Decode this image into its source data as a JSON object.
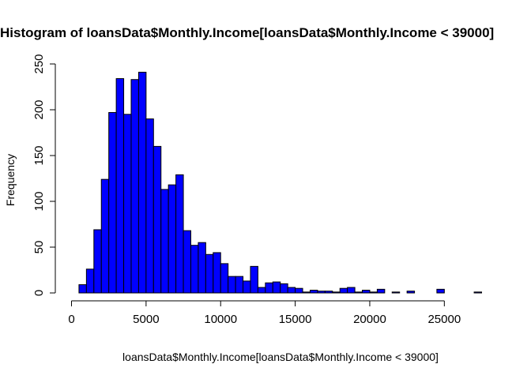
{
  "chart_data": {
    "type": "bar",
    "title": "Histogram of loansData$Monthly.Income[loansData$Monthly.Income < 39000]",
    "xlabel": "loansData$Monthly.Income[loansData$Monthly.Income < 39000]",
    "ylabel": "Frequency",
    "bar_color": "#0000ff",
    "bin_width": 500,
    "bin_start": 500,
    "values": [
      9,
      26,
      69,
      124,
      197,
      234,
      195,
      233,
      241,
      190,
      160,
      113,
      118,
      129,
      68,
      52,
      55,
      42,
      44,
      32,
      18,
      18,
      13,
      29,
      6,
      11,
      12,
      10,
      6,
      5,
      1,
      3,
      2,
      2,
      1,
      5,
      6,
      1,
      3,
      1,
      4,
      0,
      1,
      0,
      2,
      0,
      0,
      0,
      4,
      0,
      0,
      0,
      0,
      1
    ],
    "xlim": [
      0,
      27500
    ],
    "ylim": [
      0,
      250
    ],
    "xticks": [
      0,
      5000,
      10000,
      15000,
      20000,
      25000
    ],
    "yticks": [
      0,
      50,
      100,
      150,
      200,
      250
    ],
    "grid": false
  }
}
